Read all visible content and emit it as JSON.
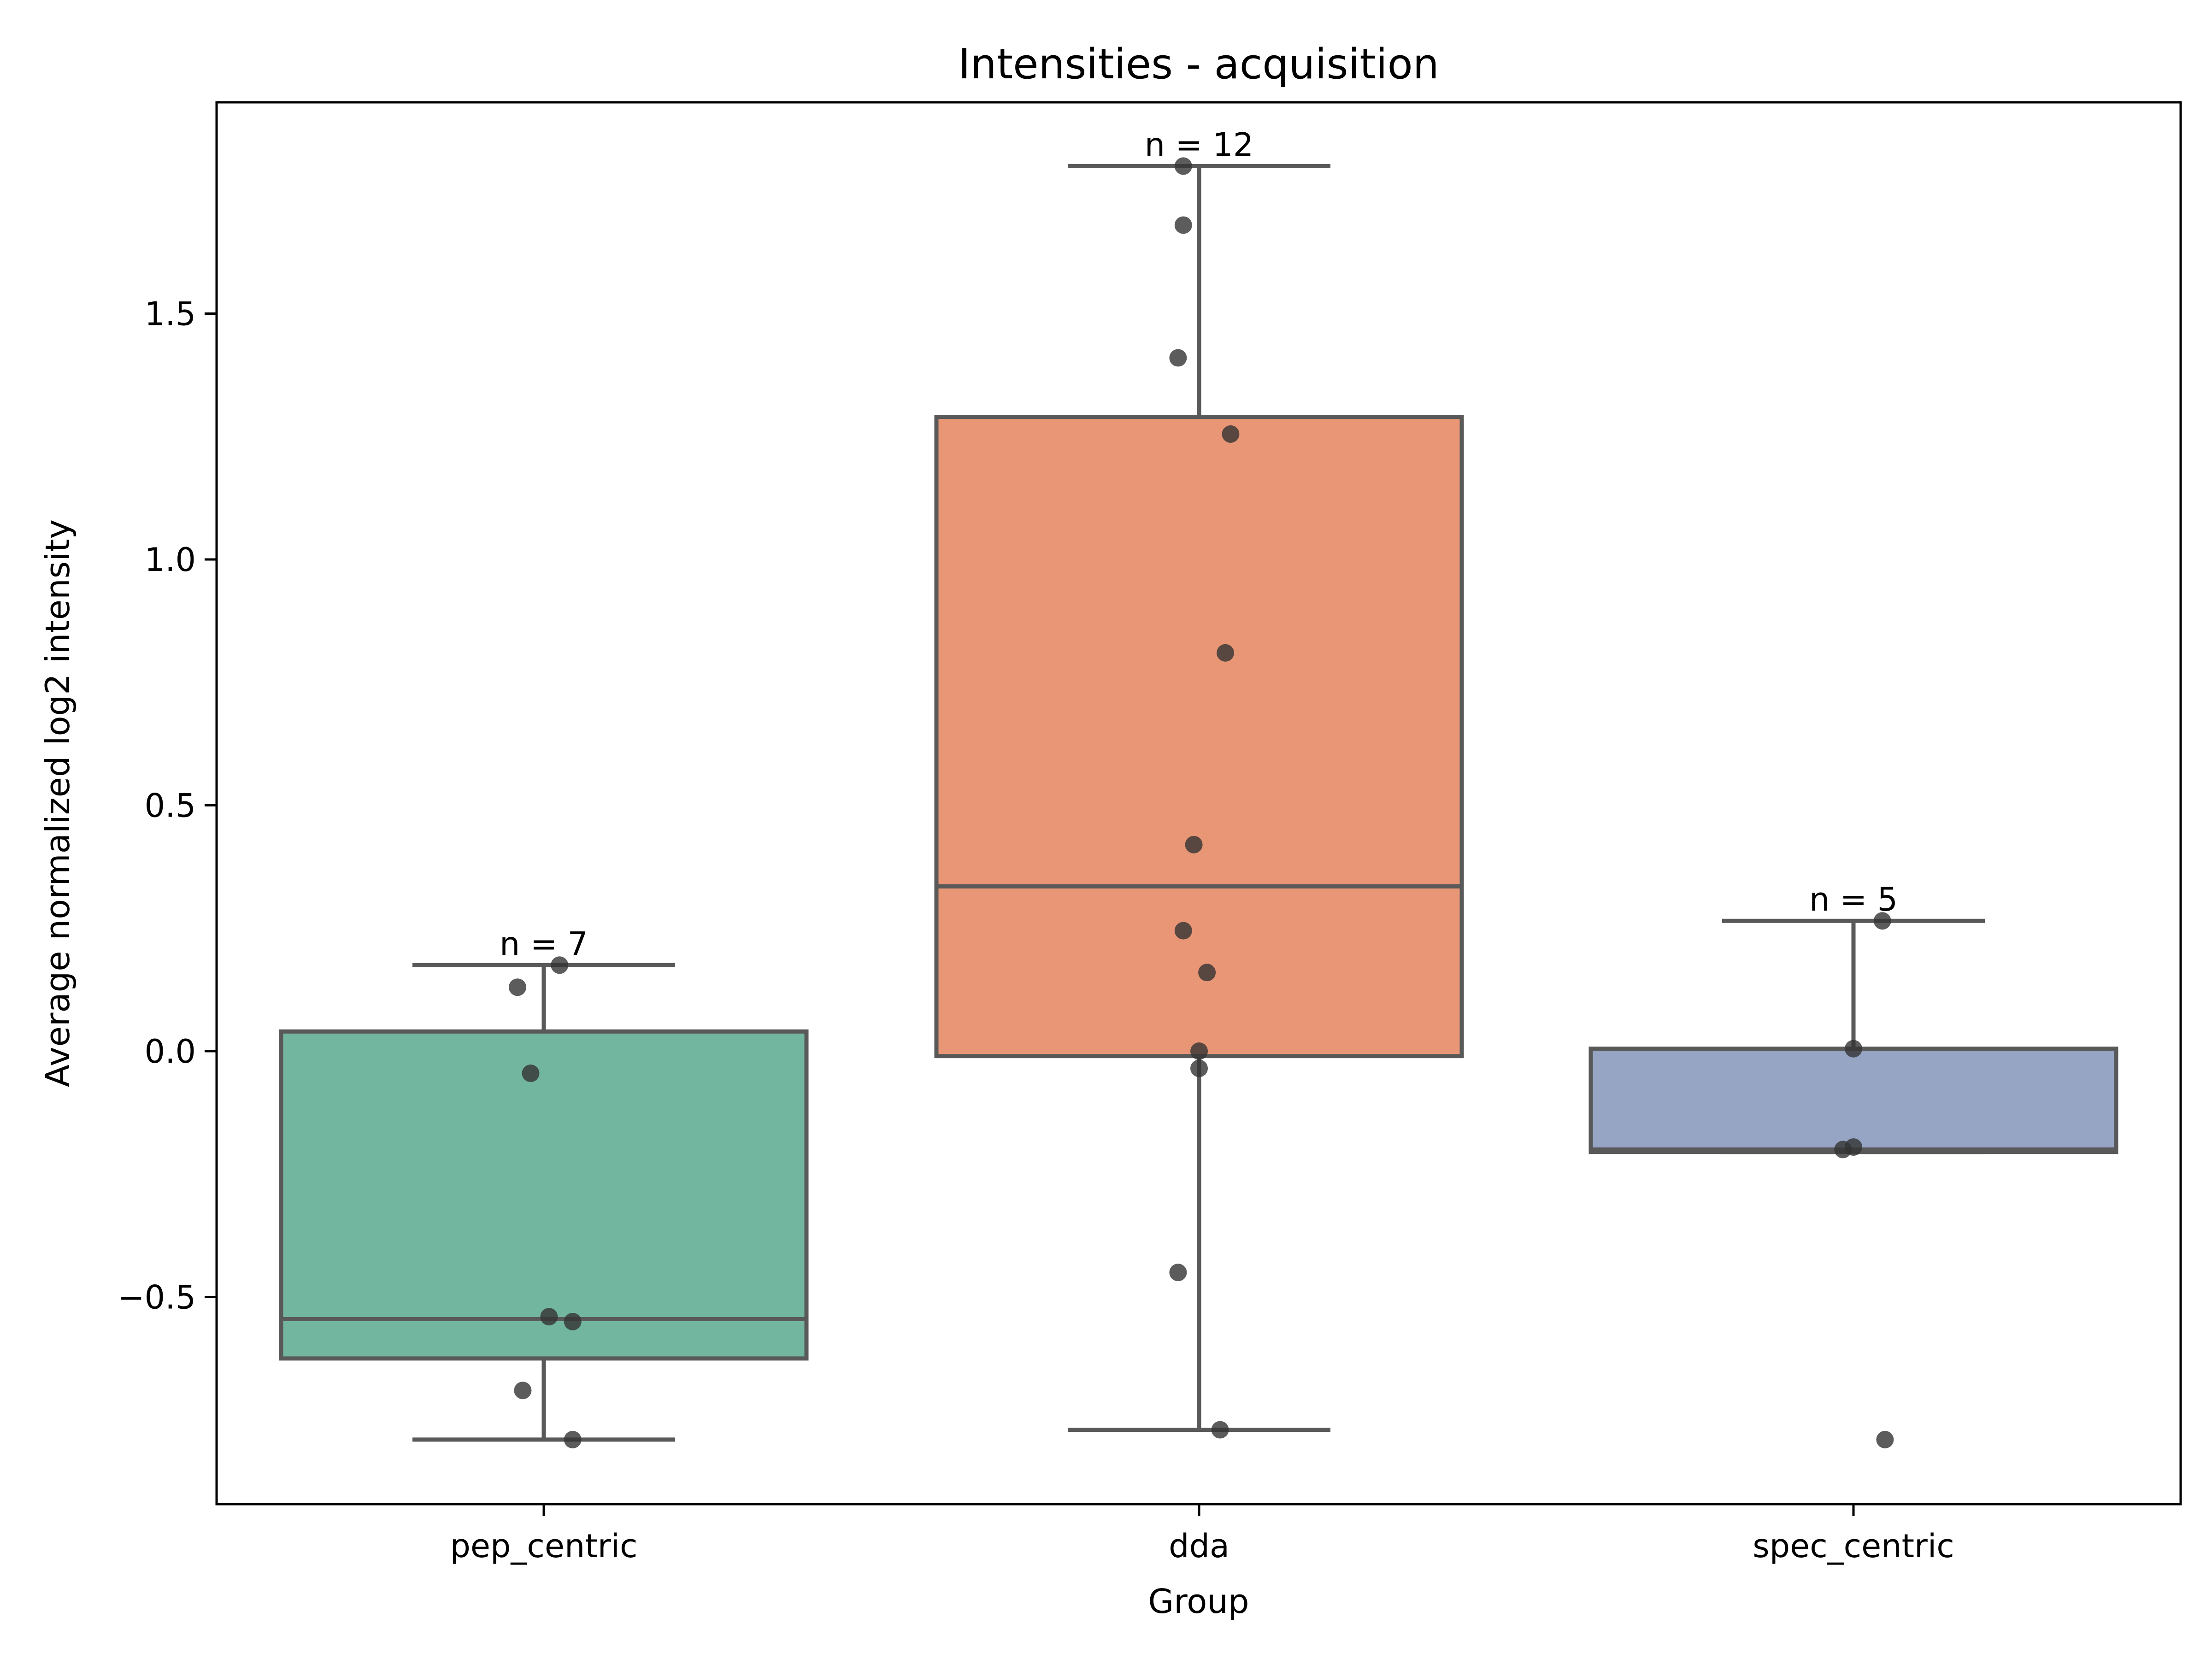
{
  "chart_data": {
    "type": "box",
    "title": "Intensities - acquisition",
    "xlabel": "Group",
    "ylabel": "Average normalized log2 intensity",
    "ylim": [
      -0.92,
      1.93
    ],
    "yticks": [
      -0.5,
      0.0,
      0.5,
      1.0,
      1.5
    ],
    "ytick_labels": [
      "−0.5",
      "0.0",
      "0.5",
      "1.0",
      "1.5"
    ],
    "grid": false,
    "categories": [
      "pep_centric",
      "dda",
      "spec_centric"
    ],
    "groups": [
      {
        "name": "pep_centric",
        "color": "#73b6a0",
        "n_label": "n = 7",
        "whisker_low": -0.79,
        "q1": -0.625,
        "median": -0.545,
        "q3": 0.04,
        "whisker_high": 0.175,
        "points": [
          {
            "jitter": -0.1,
            "y": 0.13
          },
          {
            "jitter": 0.06,
            "y": 0.175
          },
          {
            "jitter": -0.05,
            "y": -0.045
          },
          {
            "jitter": 0.02,
            "y": -0.54
          },
          {
            "jitter": 0.11,
            "y": -0.55
          },
          {
            "jitter": -0.08,
            "y": -0.69
          },
          {
            "jitter": 0.11,
            "y": -0.79
          }
        ]
      },
      {
        "name": "dda",
        "color": "#e89675",
        "n_label": "n = 12",
        "whisker_low": -0.77,
        "q1": -0.01,
        "median": 0.335,
        "q3": 1.29,
        "whisker_high": 1.8,
        "points": [
          {
            "jitter": -0.06,
            "y": 1.8
          },
          {
            "jitter": -0.06,
            "y": 1.68
          },
          {
            "jitter": -0.08,
            "y": 1.41
          },
          {
            "jitter": 0.12,
            "y": 1.255
          },
          {
            "jitter": 0.1,
            "y": 0.81
          },
          {
            "jitter": -0.02,
            "y": 0.42
          },
          {
            "jitter": -0.06,
            "y": 0.245
          },
          {
            "jitter": 0.03,
            "y": 0.16
          },
          {
            "jitter": 0.0,
            "y": 0.0
          },
          {
            "jitter": 0.0,
            "y": -0.035
          },
          {
            "jitter": -0.08,
            "y": -0.45
          },
          {
            "jitter": 0.08,
            "y": -0.77
          }
        ]
      },
      {
        "name": "spec_centric",
        "color": "#96a5c4",
        "n_label": "n = 5",
        "whisker_low": -0.205,
        "q1": -0.205,
        "median": -0.2,
        "q3": 0.005,
        "whisker_high": 0.265,
        "points": [
          {
            "jitter": 0.11,
            "y": 0.265
          },
          {
            "jitter": 0.0,
            "y": 0.005
          },
          {
            "jitter": -0.04,
            "y": -0.2
          },
          {
            "jitter": 0.0,
            "y": -0.195
          },
          {
            "jitter": 0.12,
            "y": -0.79
          }
        ]
      }
    ],
    "box_edge_color": "#595959",
    "point_color": "#333333"
  }
}
